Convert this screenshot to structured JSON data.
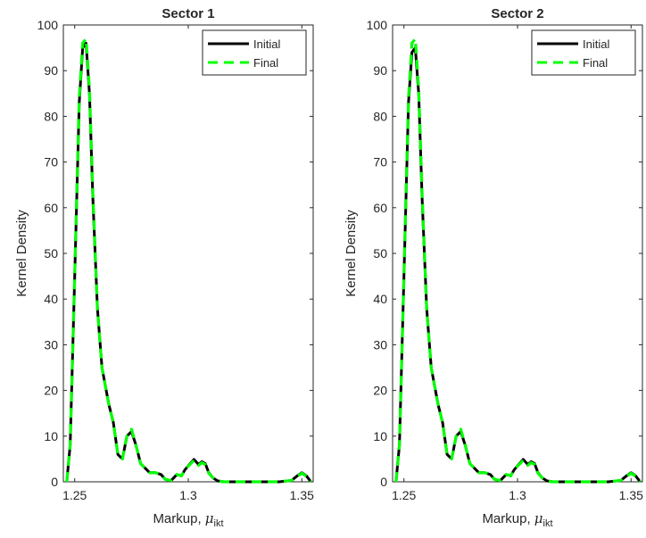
{
  "chart_data": [
    {
      "type": "line",
      "title": "Sector 1",
      "xlabel": "Markup, ",
      "xlabel_symbol": "μ",
      "xlabel_subscript": "ikt",
      "ylabel": "Kernel Density",
      "xlim": [
        1.245,
        1.355
      ],
      "ylim": [
        0,
        100
      ],
      "xticks": [
        1.25,
        1.3,
        1.35
      ],
      "xtick_labels": [
        "1.25",
        "1.3",
        "1.35"
      ],
      "yticks": [
        0,
        10,
        20,
        30,
        40,
        50,
        60,
        70,
        80,
        90,
        100
      ],
      "ytick_labels": [
        "0",
        "10",
        "20",
        "30",
        "40",
        "50",
        "60",
        "70",
        "80",
        "90",
        "100"
      ],
      "grid": false,
      "legend_position": "top-right",
      "x": [
        1.2465,
        1.248,
        1.25,
        1.252,
        1.2535,
        1.255,
        1.2565,
        1.258,
        1.26,
        1.262,
        1.2635,
        1.265,
        1.267,
        1.269,
        1.271,
        1.273,
        1.275,
        1.277,
        1.279,
        1.281,
        1.283,
        1.2855,
        1.288,
        1.29,
        1.2925,
        1.295,
        1.297,
        1.2985,
        1.3,
        1.3025,
        1.3045,
        1.306,
        1.3075,
        1.309,
        1.311,
        1.313,
        1.3155,
        1.32,
        1.33,
        1.34,
        1.3455,
        1.348,
        1.35,
        1.352,
        1.354
      ],
      "series": [
        {
          "name": "Initial",
          "color": "#000000",
          "style": "solid",
          "values": [
            0,
            8,
            45,
            83,
            95,
            96,
            85,
            62,
            38,
            25,
            21,
            17,
            13,
            6,
            5,
            10,
            11,
            8,
            4,
            3,
            2,
            2,
            1.6,
            0.5,
            0.3,
            1.6,
            1.3,
            2.6,
            3.5,
            4.9,
            3.8,
            4.4,
            4.0,
            2.0,
            0.8,
            0.2,
            0,
            0,
            0,
            0,
            0.3,
            1.3,
            2.0,
            1.3,
            0
          ]
        },
        {
          "name": "Final",
          "color": "#00ff00",
          "style": "dashed",
          "values": [
            0,
            8,
            45,
            84,
            96,
            97,
            86,
            63,
            38,
            25,
            21,
            17,
            13,
            6,
            5,
            10,
            11.5,
            8,
            4,
            3,
            2,
            2,
            1.6,
            0.5,
            0.3,
            1.6,
            1.3,
            2.6,
            3.4,
            4.7,
            3.6,
            4.2,
            3.8,
            1.9,
            0.8,
            0.2,
            0,
            0,
            0,
            0,
            0.3,
            1.2,
            1.9,
            1.2,
            0
          ]
        }
      ]
    },
    {
      "type": "line",
      "title": "Sector 2",
      "xlabel": "Markup, ",
      "xlabel_symbol": "μ",
      "xlabel_subscript": "ikt",
      "ylabel": "Kernel Density",
      "xlim": [
        1.245,
        1.355
      ],
      "ylim": [
        0,
        100
      ],
      "xticks": [
        1.25,
        1.3,
        1.35
      ],
      "xtick_labels": [
        "1.25",
        "1.3",
        "1.35"
      ],
      "yticks": [
        0,
        10,
        20,
        30,
        40,
        50,
        60,
        70,
        80,
        90,
        100
      ],
      "ytick_labels": [
        "0",
        "10",
        "20",
        "30",
        "40",
        "50",
        "60",
        "70",
        "80",
        "90",
        "100"
      ],
      "grid": false,
      "legend_position": "top-right",
      "x": [
        1.2465,
        1.248,
        1.25,
        1.252,
        1.2535,
        1.255,
        1.2565,
        1.258,
        1.26,
        1.262,
        1.2635,
        1.265,
        1.267,
        1.269,
        1.271,
        1.273,
        1.275,
        1.277,
        1.279,
        1.281,
        1.283,
        1.2855,
        1.288,
        1.29,
        1.2925,
        1.295,
        1.297,
        1.2985,
        1.3,
        1.3025,
        1.3045,
        1.306,
        1.3075,
        1.309,
        1.311,
        1.313,
        1.3155,
        1.32,
        1.33,
        1.34,
        1.3455,
        1.348,
        1.35,
        1.352,
        1.354
      ],
      "series": [
        {
          "name": "Initial",
          "color": "#000000",
          "style": "solid",
          "values": [
            0,
            8,
            45,
            83,
            94,
            95,
            85,
            62,
            38,
            25,
            21,
            17,
            13,
            6,
            5,
            10,
            11,
            8,
            4,
            3,
            2,
            2,
            1.6,
            0.5,
            0.3,
            1.6,
            1.3,
            2.6,
            3.5,
            4.9,
            3.8,
            4.4,
            4.0,
            2.0,
            0.8,
            0.2,
            0,
            0,
            0,
            0,
            0.3,
            1.3,
            2.0,
            1.3,
            0
          ]
        },
        {
          "name": "Final",
          "color": "#00ff00",
          "style": "dashed",
          "values": [
            0,
            8,
            45,
            84,
            96,
            97,
            86,
            63,
            38,
            25,
            21,
            17,
            13,
            6,
            5,
            10,
            11.5,
            8,
            4,
            3,
            2,
            2,
            1.6,
            0.5,
            0.3,
            1.6,
            1.3,
            2.6,
            3.4,
            4.7,
            3.6,
            4.2,
            3.8,
            1.9,
            0.8,
            0.2,
            0,
            0,
            0,
            0,
            0.3,
            1.2,
            1.9,
            1.2,
            0
          ]
        }
      ]
    }
  ]
}
